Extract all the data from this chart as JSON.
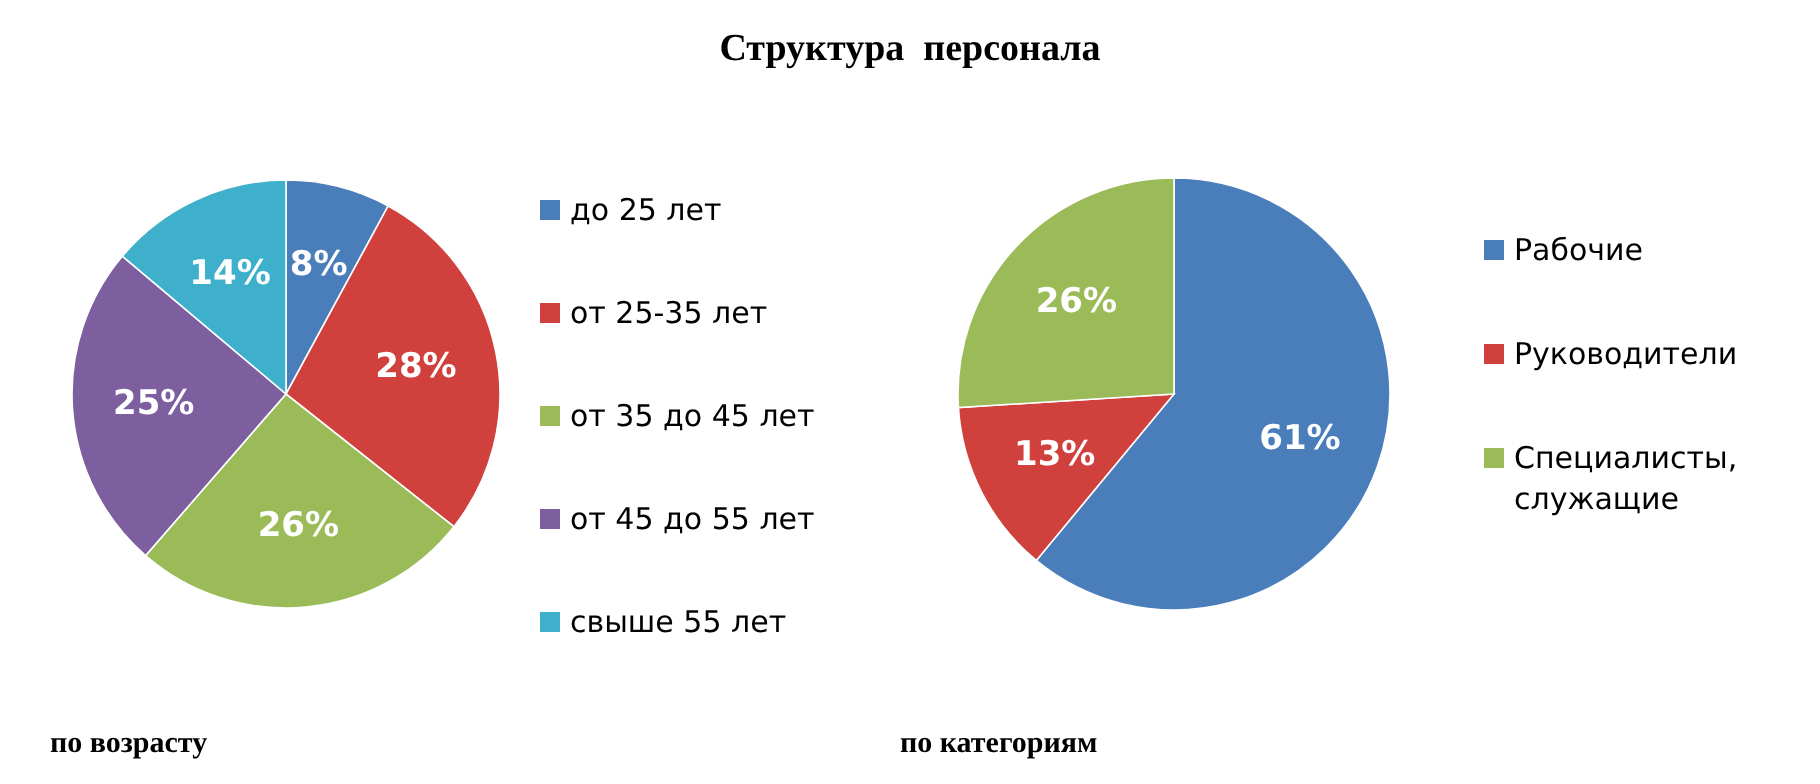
{
  "chart_data": [
    {
      "type": "pie",
      "title": "Структура  персонала",
      "annotations": [
        "по возрасту"
      ],
      "categories": [
        "до 25 лет",
        "от 25-35 лет",
        "от 35 до 45 лет",
        "от 45 до 55 лет",
        "свыше 55 лет"
      ],
      "values": [
        8,
        28,
        26,
        25,
        14
      ],
      "value_labels": [
        "8%",
        "28%",
        "26%",
        "25%",
        "14%"
      ],
      "colors": [
        "#4a7ebb",
        "#d0403d",
        "#9bbb59",
        "#7d5fa0",
        "#3fb0cc"
      ],
      "legend": "right"
    },
    {
      "type": "pie",
      "annotations": [
        "по категориям"
      ],
      "categories": [
        "Рабочие",
        "Руководители",
        "Специалисты, служащие"
      ],
      "values": [
        61,
        13,
        26
      ],
      "value_labels": [
        "61%",
        "13%",
        "26%"
      ],
      "colors": [
        "#4a7ebb",
        "#d0403d",
        "#9bbb59"
      ],
      "legend": "right"
    }
  ]
}
